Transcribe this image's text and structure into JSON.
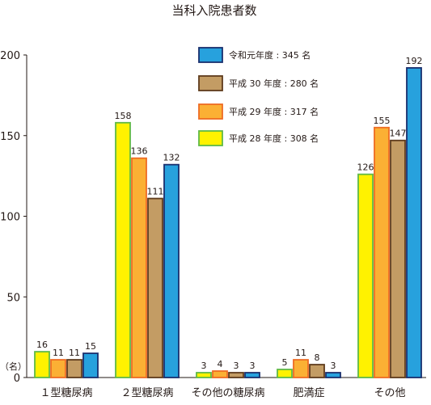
{
  "chart_data": {
    "type": "bar",
    "title": "当科入院患者数",
    "unit_label": "（名）",
    "ylim": [
      0,
      200
    ],
    "yticks": [
      0,
      50,
      100,
      150,
      200
    ],
    "categories": [
      "１型糖尿病",
      "２型糖尿病",
      "その他の糖尿病",
      "肥満症",
      "その他"
    ],
    "series": [
      {
        "name": "平成 28 年度 : 308 名",
        "values": [
          16,
          158,
          3,
          5,
          126
        ],
        "fill": "#fff200",
        "stroke": "#5fb946"
      },
      {
        "name": "平成 29 年度 : 317 名",
        "values": [
          11,
          136,
          4,
          11,
          155
        ],
        "fill": "#fbb034",
        "stroke": "#ee6c23"
      },
      {
        "name": "平成 30 年度 : 280 名",
        "values": [
          11,
          111,
          3,
          8,
          147
        ],
        "fill": "#c39c64",
        "stroke": "#5e3b1c"
      },
      {
        "name": "令和元年度 : 345 名",
        "values": [
          15,
          132,
          3,
          3,
          192
        ],
        "fill": "#27a1dd",
        "stroke": "#1a2f6e"
      }
    ],
    "legend_order": [
      3,
      2,
      1,
      0
    ],
    "legend_position": "top-center",
    "grid": false
  }
}
